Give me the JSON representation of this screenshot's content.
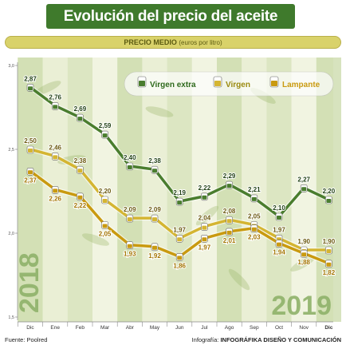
{
  "header": {
    "title": "Evolución del precio del aceite",
    "subtitle": "PRECIO MEDIO",
    "unit": "(euros por litro)"
  },
  "colors": {
    "virgen_extra": "#4a7d2e",
    "virgen": "#d4b532",
    "lampante": "#c99a10",
    "banner": "#3f7a2c",
    "year_label": "#8fb26a"
  },
  "years": {
    "start": "2018",
    "end": "2019"
  },
  "footer": {
    "source": "Fuente: Poolred",
    "credit_label": "Infografía:",
    "credit_name": "INFOGRÁFIKA DISEÑO Y COMUNICACIÓN"
  },
  "chart_data": {
    "type": "line",
    "categories": [
      "Dic",
      "Ene",
      "Feb",
      "Mar",
      "Abr",
      "May",
      "Jun",
      "Jul",
      "Ago",
      "Sep",
      "Oct",
      "Nov",
      "Dic"
    ],
    "ylim": [
      1.5,
      3.0
    ],
    "yticks": [
      "1,5",
      "2,0",
      "2,5",
      "3,0"
    ],
    "legend_position": "top-right",
    "series": [
      {
        "name": "Virgen extra",
        "color": "#4a7d2e",
        "values": [
          2.87,
          2.76,
          2.69,
          2.59,
          2.4,
          2.38,
          2.19,
          2.22,
          2.29,
          2.21,
          2.1,
          2.27,
          2.2
        ],
        "labels": [
          "2,87",
          "2,76",
          "2,69",
          "2,59",
          "2,40",
          "2,38",
          "2,19",
          "2,22",
          "2,29",
          "2,21",
          "2,10",
          "2,27",
          "2,20"
        ]
      },
      {
        "name": "Virgen",
        "color": "#d4b532",
        "values": [
          2.5,
          2.46,
          2.38,
          2.2,
          2.09,
          2.09,
          1.97,
          2.04,
          2.08,
          2.05,
          1.97,
          1.9,
          1.9
        ],
        "labels": [
          "2,50",
          "2,46",
          "2,38",
          "2,20",
          "2,09",
          "2,09",
          "1,97",
          "2,04",
          "2,08",
          "2,05",
          "1,97",
          "1,90",
          "1,90"
        ]
      },
      {
        "name": "Lampante",
        "color": "#c99a10",
        "values": [
          2.37,
          2.26,
          2.22,
          2.05,
          1.93,
          1.92,
          1.86,
          1.97,
          2.01,
          2.03,
          1.94,
          1.88,
          1.82
        ],
        "labels": [
          "2,37",
          "2,26",
          "2,22",
          "2,05",
          "1,93",
          "1,92",
          "1,86",
          "1,97",
          "2,01",
          "2,03",
          "1,94",
          "1,88",
          "1,82"
        ]
      }
    ]
  }
}
